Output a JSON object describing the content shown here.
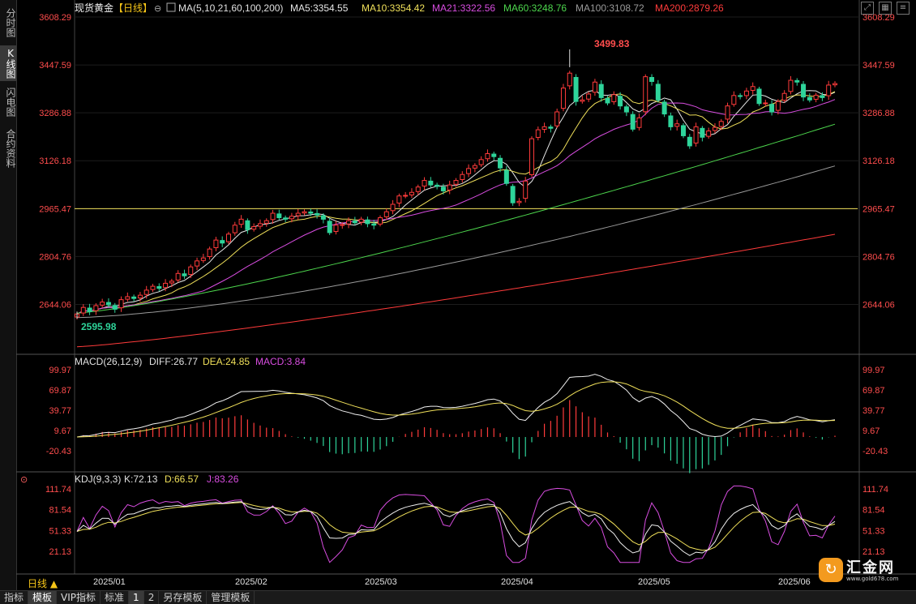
{
  "sidebar": {
    "tabs": [
      "分时图",
      "K线图",
      "闪电图",
      "合约资料"
    ],
    "active": 1
  },
  "main": {
    "title": "现货黄金",
    "period_tag": "【日线】",
    "ma_label": "MA(5,10,21,60,100,200)",
    "ma_values": [
      {
        "label": "MA5:3354.55",
        "color": "#e6e6e6"
      },
      {
        "label": "MA10:3354.42",
        "color": "#f0e05a"
      },
      {
        "label": "MA21:3322.56",
        "color": "#d84de0"
      },
      {
        "label": "MA60:3248.76",
        "color": "#4dd64d"
      },
      {
        "label": "MA100:3108.72",
        "color": "#9a9a9a"
      },
      {
        "label": "MA200:2879.26",
        "color": "#ff3b3b"
      }
    ],
    "price_ticks": [
      "3608.29",
      "3447.59",
      "3286.88",
      "3126.18",
      "2965.47",
      "2804.76",
      "2644.06"
    ],
    "high_label": "3499.83",
    "low_label": "2595.98"
  },
  "macd": {
    "label": "MACD(26,12,9)",
    "diff": "DIFF:26.77",
    "dea": "DEA:24.85",
    "macd": "MACD:3.84",
    "ticks": [
      "99.97",
      "69.87",
      "39.77",
      "9.67",
      "-20.43"
    ]
  },
  "kdj": {
    "label": "KDJ(9,3,3)",
    "k": "K:72.13",
    "d": "D:66.57",
    "j": "J:83.26",
    "ticks": [
      "111.74",
      "81.54",
      "51.33",
      "21.13"
    ]
  },
  "xaxis": {
    "period": "日线",
    "months": [
      "2025/01",
      "2025/02",
      "2025/03",
      "2025/04",
      "2025/05",
      "2025/06"
    ]
  },
  "bottombar": [
    "指标",
    "模板",
    "VIP指标",
    "标准",
    "1",
    "2",
    "另存模板",
    "管理模板"
  ],
  "logo": {
    "icon": "↻",
    "name": "汇金网",
    "url": "www.gold678.com"
  },
  "chart_data": {
    "type": "candlestick",
    "title": "现货黄金【日线】",
    "ylim": [
      2595.98,
      3608.29
    ],
    "y_ticks": [
      2644.06,
      2804.76,
      2965.47,
      3126.18,
      3286.88,
      3447.59,
      3608.29
    ],
    "horizontal_line": 2965.47,
    "extremes": {
      "high": 3499.83,
      "low": 2595.98
    },
    "closes": [
      2612,
      2634,
      2620,
      2640,
      2652,
      2643,
      2628,
      2660,
      2670,
      2664,
      2675,
      2692,
      2705,
      2698,
      2715,
      2722,
      2748,
      2740,
      2770,
      2790,
      2800,
      2830,
      2860,
      2850,
      2880,
      2910,
      2930,
      2895,
      2905,
      2915,
      2925,
      2950,
      2935,
      2930,
      2940,
      2950,
      2955,
      2950,
      2944,
      2930,
      2885,
      2910,
      2912,
      2925,
      2918,
      2930,
      2915,
      2910,
      2935,
      2955,
      2980,
      3008,
      3010,
      3020,
      3038,
      3060,
      3045,
      3040,
      3025,
      3045,
      3060,
      3080,
      3100,
      3110,
      3130,
      3150,
      3140,
      3102,
      3050,
      2985,
      2990,
      3058,
      3200,
      3230,
      3240,
      3235,
      3290,
      3370,
      3420,
      3325,
      3330,
      3350,
      3390,
      3338,
      3320,
      3348,
      3310,
      3290,
      3232,
      3270,
      3408,
      3392,
      3330,
      3283,
      3240,
      3250,
      3210,
      3176,
      3240,
      3205,
      3226,
      3238,
      3258,
      3310,
      3345,
      3342,
      3360,
      3375,
      3318,
      3320,
      3290,
      3325,
      3352,
      3396,
      3390,
      3340,
      3330,
      3346,
      3338,
      3380,
      3385
    ],
    "macd_series": {
      "diff_last": 26.77,
      "dea_last": 24.85,
      "macd_last": 3.84
    },
    "kdj_series": {
      "k_last": 72.13,
      "d_last": 66.57,
      "j_last": 83.26
    }
  }
}
